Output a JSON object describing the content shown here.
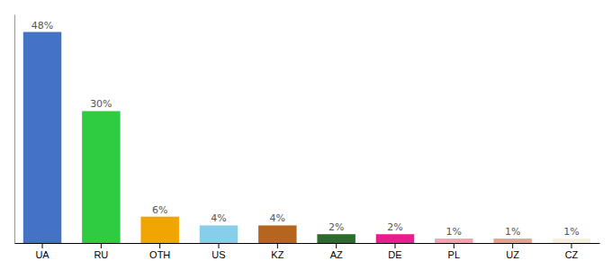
{
  "chart_data": {
    "type": "bar",
    "categories": [
      "UA",
      "RU",
      "OTH",
      "US",
      "KZ",
      "AZ",
      "DE",
      "PL",
      "UZ",
      "CZ"
    ],
    "values": [
      48,
      30,
      6,
      4,
      4,
      2,
      2,
      1,
      1,
      1
    ],
    "value_labels": [
      "48%",
      "30%",
      "6%",
      "4%",
      "4%",
      "2%",
      "2%",
      "1%",
      "1%",
      "1%"
    ],
    "colors": [
      "#4472c4",
      "#2ecc40",
      "#f0a500",
      "#87ceeb",
      "#b5651d",
      "#2d6a2d",
      "#e91e8c",
      "#f4a0b0",
      "#e8a090",
      "#f5f0dc"
    ],
    "ylim": [
      0,
      52
    ],
    "data_labels": true,
    "tick_labels": "x"
  }
}
